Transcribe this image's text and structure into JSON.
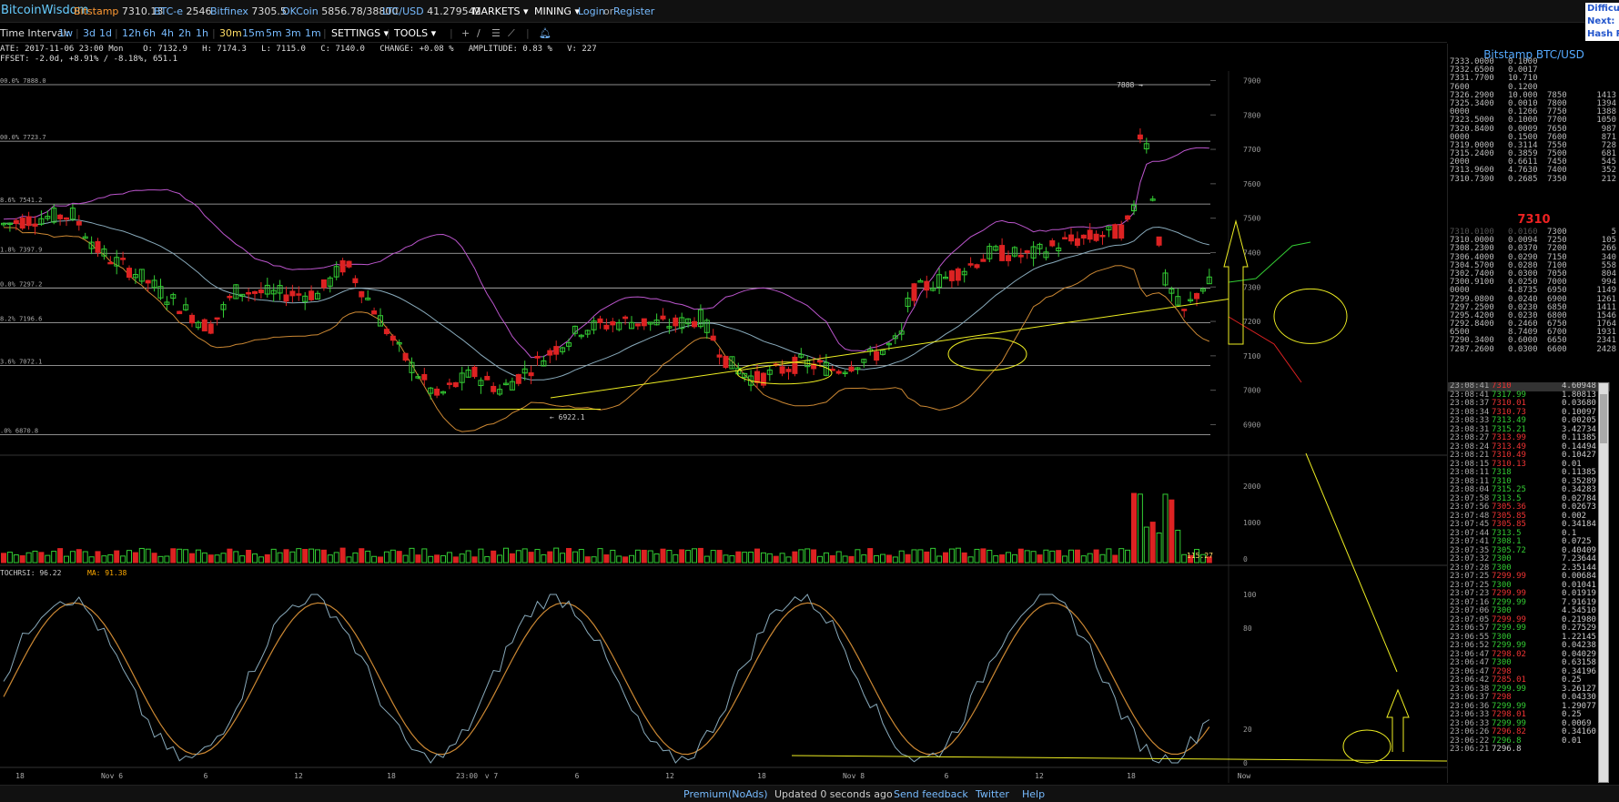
{
  "topbar": {
    "brand": "BitcoinWisdom",
    "exchanges": [
      {
        "name": "Bitstamp",
        "value": "7310.13"
      },
      {
        "name": "BTC-e",
        "value": "2546"
      },
      {
        "name": "Bitfinex",
        "value": "7305.5"
      },
      {
        "name": "OKCoin",
        "value": "5856.78/38800"
      },
      {
        "name": "LTC/USD",
        "value": "41.279542"
      }
    ],
    "markets": "MARKETS",
    "mining": "MINING",
    "login": "Login",
    "or": "or",
    "register": "Register",
    "corner": [
      "Difficu",
      "Next:",
      "Hash R"
    ]
  },
  "toolbar": {
    "label": "Time Interval:",
    "intervals": [
      "1w",
      "3d",
      "1d",
      "12h",
      "6h",
      "4h",
      "2h",
      "1h",
      "30m",
      "15m",
      "5m",
      "3m",
      "1m"
    ],
    "active": "30m",
    "settings": "SETTINGS",
    "tools": "TOOLS"
  },
  "ohlc": {
    "line1": "ATE: 2017-11-06 23:00 Mon    O: 7132.9   H: 7174.3   L: 7115.0   C: 7140.0   CHANGE: +0.08 %   AMPLITUDE: 0.83 %   V: 227",
    "line2": "FFSET: -2.0d, +8.91% / -8.18%, 651.1"
  },
  "chart_data": {
    "type": "candlestick",
    "price_ticks": [
      "7900",
      "7800",
      "7700",
      "7600",
      "7500",
      "7400",
      "7300",
      "7200",
      "7100",
      "7000",
      "6900"
    ],
    "fib_levels": [
      {
        "label": "00.0% 7888.0",
        "value": 7888
      },
      {
        "label": "00.0% 7723.7",
        "value": 7723.7
      },
      {
        "label": "8.6% 7541.2",
        "value": 7541.2
      },
      {
        "label": "1.8% 7397.9",
        "value": 7397.9
      },
      {
        "label": "0.0% 7297.2",
        "value": 7297.2
      },
      {
        "label": "8.2% 7196.6",
        "value": 7196.6
      },
      {
        "label": "3.6% 7072.1",
        "value": 7072.1
      },
      {
        "label": ".0% 6870.8",
        "value": 6870.8
      }
    ],
    "high_label": "7888 →",
    "low_label": "← 6922.1",
    "volume_ticks": [
      "2000",
      "1000",
      "0"
    ],
    "volume_last": "115.27",
    "stochrsi": {
      "label": "TOCHRSI: 96.22",
      "ma_label": "MA: 91.38",
      "ticks": [
        "100",
        "80",
        "20",
        "0"
      ]
    },
    "time_labels": [
      {
        "label": "18",
        "x": 22
      },
      {
        "label": "Nov 6",
        "x": 123
      },
      {
        "label": "6",
        "x": 226
      },
      {
        "label": "12",
        "x": 328
      },
      {
        "label": "18",
        "x": 430
      },
      {
        "label": "23:00",
        "x": 513
      },
      {
        "label": "v 7",
        "x": 540
      },
      {
        "label": "6",
        "x": 634
      },
      {
        "label": "12",
        "x": 736
      },
      {
        "label": "18",
        "x": 837
      },
      {
        "label": "Nov 8",
        "x": 938
      },
      {
        "label": "6",
        "x": 1040
      },
      {
        "label": "12",
        "x": 1142
      },
      {
        "label": "18",
        "x": 1243
      },
      {
        "label": "Now",
        "x": 1367
      }
    ]
  },
  "sidepanel": {
    "title": "Bitstamp BTC/USD",
    "asks": [
      [
        "7333.0000",
        "0.1000",
        "",
        ""
      ],
      [
        "7332.6500",
        "0.0017",
        "",
        ""
      ],
      [
        "7331.7700",
        "10.710",
        "",
        ""
      ],
      [
        "7600",
        "0.1200",
        "",
        ""
      ],
      [
        "7326.2900",
        "10.000",
        "7850",
        "1413"
      ],
      [
        "7325.3400",
        "0.0010",
        "7800",
        "1394"
      ],
      [
        "0000",
        "0.1206",
        "7750",
        "1388"
      ],
      [
        "7323.5000",
        "0.1000",
        "7700",
        "1050"
      ],
      [
        "7320.8400",
        "0.0009",
        "7650",
        "987"
      ],
      [
        "0000",
        "0.1500",
        "7600",
        "871"
      ],
      [
        "7319.0000",
        "0.3114",
        "7550",
        "728"
      ],
      [
        "7315.2400",
        "0.3859",
        "7500",
        "681"
      ],
      [
        "2000",
        "0.6611",
        "7450",
        "545"
      ],
      [
        "7313.9600",
        "4.7630",
        "7400",
        "352"
      ],
      [
        "7310.7300",
        "0.2685",
        "7350",
        "212"
      ]
    ],
    "last": "7310",
    "bids": [
      [
        "7310.0100",
        "0.0160",
        "7300",
        "5"
      ],
      [
        "7310.0000",
        "0.0094",
        "7250",
        "105"
      ],
      [
        "7308.2300",
        "0.0370",
        "7200",
        "266"
      ],
      [
        "7306.4000",
        "0.0290",
        "7150",
        "340"
      ],
      [
        "7304.5700",
        "0.0280",
        "7100",
        "558"
      ],
      [
        "7302.7400",
        "0.0300",
        "7050",
        "804"
      ],
      [
        "7300.9100",
        "0.0250",
        "7000",
        "994"
      ],
      [
        "0000",
        "4.8735",
        "6950",
        "1149"
      ],
      [
        "7299.0800",
        "0.0240",
        "6900",
        "1261"
      ],
      [
        "7297.2500",
        "0.0230",
        "6850",
        "1411"
      ],
      [
        "7295.4200",
        "0.0230",
        "6800",
        "1546"
      ],
      [
        "7292.8400",
        "0.2460",
        "6750",
        "1764"
      ],
      [
        "6500",
        "8.7409",
        "6700",
        "1931"
      ],
      [
        "7290.3400",
        "0.6000",
        "6650",
        "2341"
      ],
      [
        "7287.2600",
        "0.0300",
        "6600",
        "2428"
      ]
    ],
    "trades": [
      [
        "23:08:41",
        "7310",
        "4.60948",
        "dn"
      ],
      [
        "23:08:41",
        "7317.99",
        "1.80813",
        "up"
      ],
      [
        "23:08:37",
        "7310.01",
        "0.03680",
        "dn"
      ],
      [
        "23:08:34",
        "7310.73",
        "0.10097",
        "dn"
      ],
      [
        "23:08:33",
        "7313.49",
        "0.00205",
        "up"
      ],
      [
        "23:08:31",
        "7315.21",
        "3.42734",
        "up"
      ],
      [
        "23:08:27",
        "7313.99",
        "0.11385",
        "dn"
      ],
      [
        "23:08:24",
        "7313.49",
        "0.14494",
        "dn"
      ],
      [
        "23:08:21",
        "7310.49",
        "0.10427",
        "dn"
      ],
      [
        "23:08:15",
        "7310.13",
        "0.01",
        "dn"
      ],
      [
        "23:08:11",
        "7318",
        "0.11385",
        "up"
      ],
      [
        "23:08:11",
        "7310",
        "0.35289",
        "up"
      ],
      [
        "23:08:04",
        "7315.25",
        "0.34283",
        "up"
      ],
      [
        "23:07:58",
        "7313.5",
        "0.02784",
        "up"
      ],
      [
        "23:07:56",
        "7305.36",
        "0.02673",
        "dn"
      ],
      [
        "23:07:48",
        "7305.85",
        "0.002",
        "dn"
      ],
      [
        "23:07:45",
        "7305.85",
        "0.34184",
        "dn"
      ],
      [
        "23:07:44",
        "7313.5",
        "0.1",
        "up"
      ],
      [
        "23:07:41",
        "7308.1",
        "0.0725",
        "up"
      ],
      [
        "23:07:35",
        "7305.72",
        "0.40409",
        "up"
      ],
      [
        "23:07:32",
        "7300",
        "7.23644",
        "up"
      ],
      [
        "23:07:28",
        "7300",
        "2.35144",
        "up"
      ],
      [
        "23:07:25",
        "7299.99",
        "0.00684",
        "dn"
      ],
      [
        "23:07:25",
        "7300",
        "0.01041",
        "up"
      ],
      [
        "23:07:23",
        "7299.99",
        "0.01919",
        "dn"
      ],
      [
        "23:07:16",
        "7299.99",
        "7.91619",
        "up"
      ],
      [
        "23:07:06",
        "7300",
        "4.54510",
        "up"
      ],
      [
        "23:07:05",
        "7299.99",
        "0.21980",
        "dn"
      ],
      [
        "23:06:57",
        "7299.99",
        "0.27529",
        "up"
      ],
      [
        "23:06:55",
        "7300",
        "1.22145",
        "up"
      ],
      [
        "23:06:52",
        "7299.99",
        "0.04238",
        "up"
      ],
      [
        "23:06:47",
        "7298.02",
        "0.04029",
        "dn"
      ],
      [
        "23:06:47",
        "7300",
        "0.63158",
        "up"
      ],
      [
        "23:06:47",
        "7298",
        "0.34196",
        "dn"
      ],
      [
        "23:06:42",
        "7285.01",
        "0.25",
        "dn"
      ],
      [
        "23:06:38",
        "7299.99",
        "3.26127",
        "up"
      ],
      [
        "23:06:37",
        "7298",
        "0.04330",
        "dn"
      ],
      [
        "23:06:36",
        "7299.99",
        "1.29077",
        "up"
      ],
      [
        "23:06:33",
        "7298.01",
        "0.25",
        "dn"
      ],
      [
        "23:06:33",
        "7299.99",
        "0.0069",
        "up"
      ],
      [
        "23:06:26",
        "7296.82",
        "0.34160",
        "dn"
      ],
      [
        "23:06:22",
        "7296.8",
        "0.01",
        "up"
      ],
      [
        "23:06:21",
        "7296.8",
        "",
        ""
      ]
    ]
  },
  "footer": {
    "premium": "Premium(NoAds)",
    "updated": "Updated 0 seconds ago",
    "feedback": "Send feedback",
    "twitter": "Twitter",
    "help": "Help"
  }
}
